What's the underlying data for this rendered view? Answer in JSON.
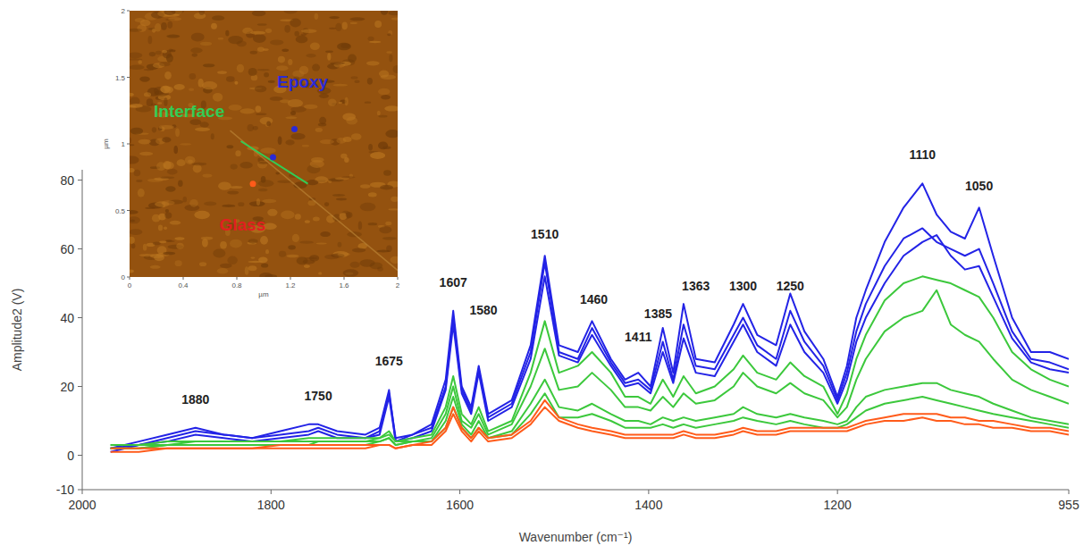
{
  "chart_data": {
    "type": "line",
    "ylabel": "Amplitude2 (V)",
    "xlabel": "Wavenumber (cm⁻¹)",
    "xlim": [
      2000,
      955
    ],
    "xticks": [
      2000,
      1800,
      1600,
      1400,
      1200,
      955
    ],
    "ylim": [
      -10,
      83
    ],
    "yticks": [
      -10,
      0,
      20,
      40,
      60,
      80
    ],
    "grid": false,
    "x": [
      1970,
      1940,
      1910,
      1880,
      1850,
      1820,
      1790,
      1760,
      1750,
      1730,
      1700,
      1685,
      1675,
      1668,
      1650,
      1630,
      1615,
      1607,
      1598,
      1588,
      1580,
      1570,
      1545,
      1525,
      1510,
      1495,
      1475,
      1460,
      1440,
      1425,
      1411,
      1398,
      1385,
      1374,
      1363,
      1350,
      1330,
      1310,
      1300,
      1285,
      1265,
      1250,
      1235,
      1215,
      1200,
      1190,
      1180,
      1170,
      1150,
      1130,
      1110,
      1095,
      1080,
      1065,
      1050,
      1035,
      1015,
      995,
      975,
      955
    ],
    "series": [
      {
        "color": "#2323e6",
        "values": [
          2,
          4,
          6,
          8,
          6,
          5,
          7,
          9,
          9,
          7,
          6,
          8,
          19,
          4,
          6,
          9,
          22,
          42,
          20,
          14,
          26,
          12,
          16,
          32,
          58,
          32,
          30,
          39,
          28,
          22,
          24,
          20,
          37,
          24,
          44,
          28,
          27,
          38,
          44,
          35,
          32,
          47,
          36,
          28,
          17,
          26,
          40,
          48,
          62,
          72,
          79,
          70,
          65,
          63,
          72,
          58,
          40,
          30,
          30,
          28
        ]
      },
      {
        "color": "#2323e6",
        "values": [
          2,
          3,
          5,
          7,
          6,
          5,
          6,
          7,
          8,
          6,
          5,
          7,
          18,
          5,
          6,
          8,
          20,
          40,
          19,
          13,
          25,
          11,
          15,
          30,
          56,
          30,
          28,
          37,
          27,
          21,
          22,
          19,
          33,
          22,
          38,
          26,
          25,
          35,
          40,
          32,
          28,
          42,
          33,
          26,
          16,
          24,
          36,
          44,
          55,
          63,
          66,
          62,
          60,
          58,
          60,
          50,
          36,
          28,
          27,
          25
        ]
      },
      {
        "color": "#2323e6",
        "values": [
          1,
          3,
          4,
          6,
          5,
          4,
          5,
          6,
          7,
          5,
          5,
          6,
          17,
          4,
          5,
          7,
          19,
          38,
          18,
          12,
          24,
          10,
          14,
          28,
          52,
          29,
          27,
          35,
          26,
          20,
          21,
          18,
          30,
          21,
          34,
          24,
          23,
          33,
          38,
          30,
          26,
          38,
          30,
          24,
          15,
          22,
          33,
          40,
          50,
          58,
          62,
          64,
          58,
          54,
          55,
          46,
          34,
          27,
          25,
          24
        ]
      },
      {
        "color": "#3cc83c",
        "values": [
          3,
          3,
          4,
          4,
          4,
          4,
          4,
          5,
          5,
          5,
          5,
          5,
          7,
          4,
          5,
          6,
          14,
          23,
          12,
          9,
          14,
          7,
          10,
          24,
          39,
          24,
          26,
          30,
          24,
          17,
          17,
          15,
          22,
          17,
          23,
          18,
          20,
          25,
          29,
          24,
          22,
          27,
          23,
          20,
          12,
          18,
          28,
          35,
          45,
          50,
          52,
          51,
          50,
          48,
          46,
          40,
          30,
          25,
          22,
          20
        ]
      },
      {
        "color": "#3cc83c",
        "values": [
          3,
          3,
          3,
          4,
          4,
          4,
          4,
          4,
          4,
          4,
          4,
          5,
          6,
          4,
          4,
          5,
          12,
          20,
          10,
          8,
          12,
          6,
          9,
          20,
          31,
          19,
          20,
          24,
          19,
          14,
          14,
          13,
          17,
          14,
          18,
          15,
          16,
          20,
          24,
          20,
          18,
          21,
          18,
          16,
          11,
          14,
          22,
          28,
          36,
          40,
          42,
          48,
          38,
          35,
          33,
          28,
          22,
          19,
          17,
          15
        ]
      },
      {
        "color": "#3cc83c",
        "values": [
          2,
          2,
          3,
          3,
          3,
          3,
          3,
          3,
          4,
          4,
          4,
          4,
          5,
          3,
          4,
          4,
          10,
          17,
          9,
          6,
          10,
          5,
          7,
          15,
          22,
          14,
          13,
          15,
          12,
          10,
          10,
          9,
          11,
          10,
          11,
          10,
          11,
          12,
          14,
          12,
          11,
          12,
          11,
          10,
          9,
          10,
          14,
          17,
          19,
          20,
          21,
          21,
          19,
          18,
          17,
          15,
          13,
          11,
          10,
          9
        ]
      },
      {
        "color": "#3cc83c",
        "values": [
          2,
          2,
          3,
          3,
          3,
          3,
          3,
          3,
          3,
          3,
          3,
          4,
          5,
          3,
          4,
          4,
          8,
          14,
          8,
          5,
          8,
          5,
          6,
          12,
          18,
          11,
          11,
          12,
          10,
          8,
          8,
          8,
          9,
          8,
          9,
          8,
          9,
          10,
          11,
          10,
          9,
          10,
          9,
          8,
          8,
          9,
          11,
          13,
          15,
          16,
          17,
          16,
          15,
          14,
          13,
          12,
          11,
          10,
          9,
          8
        ]
      },
      {
        "color": "#ff5b1a",
        "values": [
          2,
          2,
          2,
          2,
          2,
          2,
          3,
          3,
          3,
          3,
          3,
          3,
          3,
          2,
          3,
          4,
          8,
          14,
          8,
          5,
          8,
          5,
          6,
          10,
          16,
          11,
          9,
          8,
          7,
          6,
          6,
          6,
          6,
          6,
          7,
          6,
          6,
          7,
          8,
          7,
          7,
          8,
          8,
          8,
          8,
          8,
          9,
          10,
          11,
          12,
          12,
          12,
          11,
          11,
          10,
          10,
          9,
          8,
          8,
          7
        ]
      },
      {
        "color": "#ff5b1a",
        "values": [
          1,
          1,
          2,
          2,
          2,
          2,
          2,
          2,
          2,
          2,
          2,
          3,
          3,
          2,
          3,
          3,
          7,
          12,
          7,
          4,
          7,
          4,
          5,
          9,
          14,
          10,
          8,
          7,
          6,
          5,
          5,
          5,
          5,
          5,
          6,
          5,
          5,
          6,
          7,
          6,
          6,
          7,
          7,
          7,
          7,
          7,
          8,
          9,
          10,
          10,
          11,
          10,
          10,
          9,
          9,
          8,
          8,
          7,
          7,
          6
        ]
      }
    ],
    "annotations": [
      {
        "text": "1880",
        "x": 1880,
        "y": 15
      },
      {
        "text": "1750",
        "x": 1750,
        "y": 16
      },
      {
        "text": "1675",
        "x": 1675,
        "y": 26
      },
      {
        "text": "1607",
        "x": 1607,
        "y": 49
      },
      {
        "text": "1580",
        "x": 1575,
        "y": 41
      },
      {
        "text": "1510",
        "x": 1510,
        "y": 63
      },
      {
        "text": "1460",
        "x": 1458,
        "y": 44
      },
      {
        "text": "1411",
        "x": 1411,
        "y": 33
      },
      {
        "text": "1385",
        "x": 1390,
        "y": 40
      },
      {
        "text": "1363",
        "x": 1350,
        "y": 48
      },
      {
        "text": "1300",
        "x": 1300,
        "y": 48
      },
      {
        "text": "1250",
        "x": 1250,
        "y": 48
      },
      {
        "text": "1110",
        "x": 1110,
        "y": 86
      },
      {
        "text": "1050",
        "x": 1050,
        "y": 77
      }
    ]
  },
  "inset": {
    "xlabel": "µm",
    "ylabel": "µm",
    "xlim": [
      0,
      2
    ],
    "ylim": [
      0,
      2
    ],
    "xticks": [
      0,
      0.4,
      0.8,
      1.2,
      1.6,
      2
    ],
    "yticks": [
      0,
      0.5,
      1,
      1.5,
      2
    ],
    "labels": [
      {
        "text": "Epoxy",
        "color": "#2a2ad6",
        "x": 1.1,
        "y": 1.42
      },
      {
        "text": "Interface",
        "color": "#33cc55",
        "x": 0.18,
        "y": 1.2
      },
      {
        "text": "Glass",
        "color": "#e02020",
        "x": 0.67,
        "y": 0.35
      }
    ],
    "line": {
      "color": "#33cc55",
      "x": [
        0.83,
        1.33
      ],
      "y": [
        1.02,
        0.7
      ]
    },
    "points": [
      {
        "color": "#2a2ad6",
        "x": 1.23,
        "y": 1.11
      },
      {
        "color": "#2a2ad6",
        "x": 1.07,
        "y": 0.9
      },
      {
        "color": "#ff5b1a",
        "x": 0.92,
        "y": 0.7
      }
    ]
  }
}
